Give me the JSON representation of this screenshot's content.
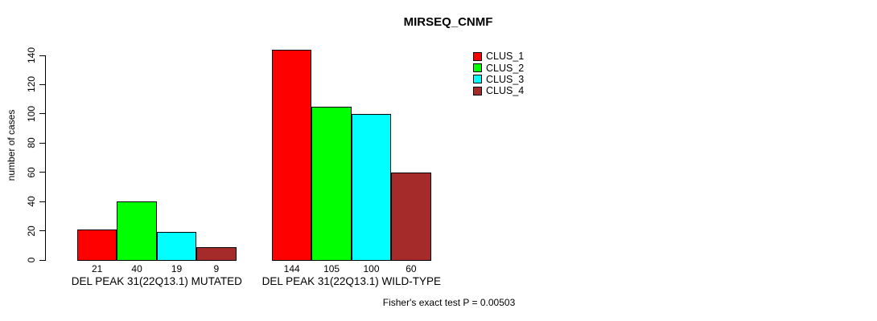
{
  "page": {
    "background": "#ffffff",
    "text_color": "#000000"
  },
  "chart_data": {
    "type": "bar",
    "title": "MIRSEQ_CNMF",
    "xlabel": "",
    "ylabel": "number of cases",
    "ylim": [
      0,
      144
    ],
    "yticks": [
      0,
      20,
      40,
      60,
      80,
      100,
      120,
      140
    ],
    "grid": false,
    "legend_position": "top-right",
    "bar_border_color": "#000000",
    "series": [
      {
        "name": "CLUS_1",
        "color": "#ff0000"
      },
      {
        "name": "CLUS_2",
        "color": "#00ff00"
      },
      {
        "name": "CLUS_3",
        "color": "#00ffff"
      },
      {
        "name": "CLUS_4",
        "color": "#a52a2a"
      }
    ],
    "groups": [
      {
        "label": "DEL PEAK 31(22Q13.1) MUTATED",
        "values": [
          21,
          40,
          19,
          9
        ]
      },
      {
        "label": "DEL PEAK 31(22Q13.1) WILD-TYPE",
        "values": [
          144,
          105,
          100,
          60
        ]
      }
    ],
    "annotation": "Fisher's exact test P = 0.00503"
  }
}
